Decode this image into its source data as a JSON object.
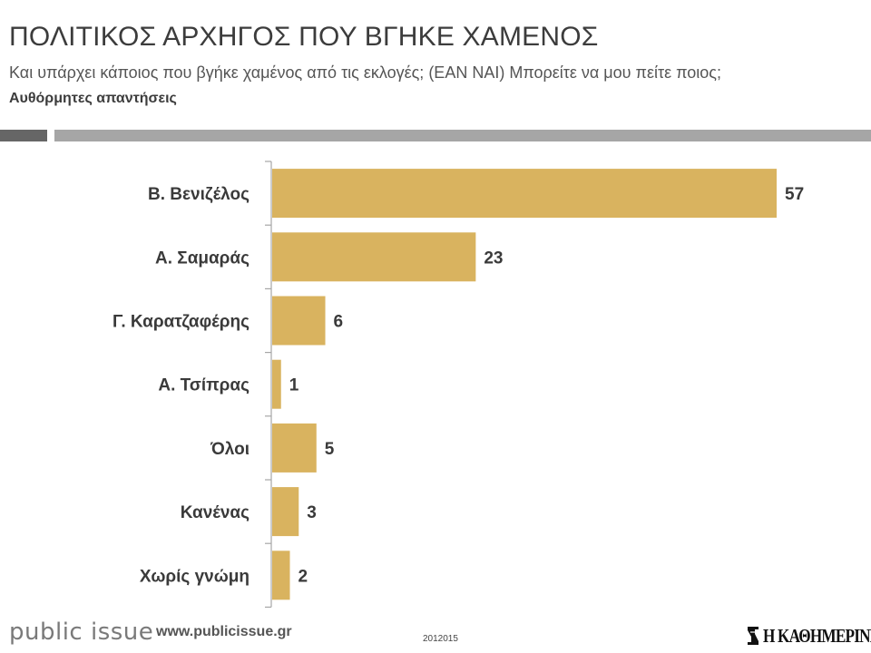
{
  "header": {
    "title": "ΠΟΛΙΤΙΚΟΣ ΑΡΧΗΓΟΣ ΠΟΥ ΒΓΗΚΕ ΧΑΜΕΝΟΣ",
    "subtitle": "Και υπάρχει κάποιος που βγήκε χαμένος από τις εκλογές; (ΕΑΝ ΝΑΙ) Μπορείτε να μου πείτε ποιος;",
    "note": "Αυθόρμητες απαντήσεις"
  },
  "chart_data": {
    "type": "bar",
    "orientation": "horizontal",
    "categories": [
      "Β. Βενιζέλος",
      "Α. Σαμαράς",
      "Γ. Καρατζαφέρης",
      "Α. Τσίπρας",
      "Όλοι",
      "Κανένας",
      "Χωρίς γνώμη"
    ],
    "values": [
      57,
      23,
      6,
      1,
      5,
      3,
      2
    ],
    "data_labels": [
      "57",
      "23",
      "6",
      "1",
      "5",
      "3",
      "2"
    ],
    "xlim": [
      0,
      57
    ],
    "grid": false,
    "legend": "none"
  },
  "footer": {
    "brand": "public issue",
    "url": "www.publicissue.gr",
    "code": "2012015",
    "logo_text": "Η ΚΑΘΗΜΕΡΙΝΗ",
    "logo_icon": "kathimerini-seal-icon"
  },
  "colors": {
    "bar": "#d9b35f",
    "rule_dark": "#666666",
    "rule_light": "#a6a6a6",
    "axis": "#a6a6a6"
  }
}
